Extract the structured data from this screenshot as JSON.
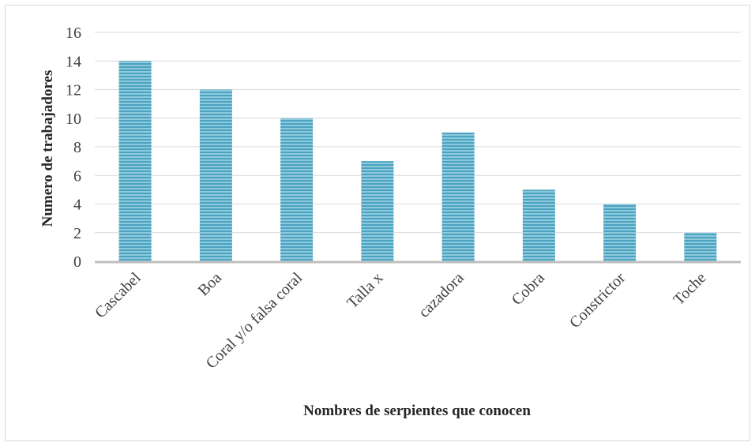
{
  "chart_data": {
    "type": "bar",
    "categories": [
      "Cascabel",
      "Boa",
      "Coral y/o falsa coral",
      "Talla x",
      "cazadora",
      "Cobra",
      "Constrictor",
      "Toche"
    ],
    "values": [
      14,
      12,
      10,
      7,
      9,
      5,
      4,
      2
    ],
    "title": "",
    "xlabel": "Nombres de serpientes que conocen",
    "ylabel": "Numero de trabajadores",
    "ylim": [
      0,
      16
    ],
    "yticks": [
      0,
      2,
      4,
      6,
      8,
      10,
      12,
      14,
      16
    ],
    "grid": true,
    "legend": "none",
    "colors": {
      "bar": "#8fc9dc",
      "bar_stripe": "#4aa3c1",
      "grid": "#d9d9d9",
      "axis": "#bfbfbf"
    }
  }
}
